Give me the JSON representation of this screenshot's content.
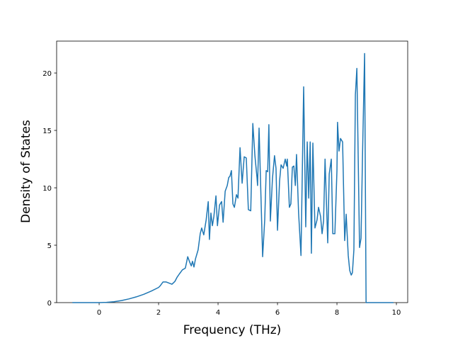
{
  "chart_data": {
    "type": "line",
    "xlabel": "Frequency (THz)",
    "ylabel": "Density of States",
    "x": [
      -0.9,
      -0.5,
      0,
      0.25,
      0.5,
      0.75,
      1.0,
      1.25,
      1.5,
      1.75,
      2.0,
      2.05,
      2.15,
      2.25,
      2.35,
      2.45,
      2.55,
      2.62,
      2.7,
      2.8,
      2.9,
      2.98,
      3.05,
      3.1,
      3.14,
      3.19,
      3.24,
      3.33,
      3.4,
      3.45,
      3.52,
      3.6,
      3.67,
      3.71,
      3.76,
      3.81,
      3.86,
      3.93,
      3.98,
      4.05,
      4.12,
      4.17,
      4.24,
      4.31,
      4.36,
      4.4,
      4.45,
      4.5,
      4.55,
      4.62,
      4.67,
      4.74,
      4.81,
      4.88,
      4.95,
      5.02,
      5.1,
      5.17,
      5.24,
      5.31,
      5.33,
      5.38,
      5.5,
      5.57,
      5.62,
      5.67,
      5.71,
      5.76,
      5.83,
      5.9,
      5.95,
      6.0,
      6.07,
      6.12,
      6.19,
      6.26,
      6.31,
      6.33,
      6.4,
      6.45,
      6.5,
      6.55,
      6.6,
      6.64,
      6.71,
      6.79,
      6.88,
      6.95,
      7.0,
      7.05,
      7.1,
      7.14,
      7.19,
      7.26,
      7.33,
      7.38,
      7.45,
      7.5,
      7.55,
      7.6,
      7.69,
      7.74,
      7.81,
      7.86,
      7.93,
      8.0,
      8.02,
      8.07,
      8.12,
      8.19,
      8.26,
      8.31,
      8.38,
      8.43,
      8.48,
      8.52,
      8.57,
      8.62,
      8.67,
      8.76,
      8.81,
      8.86,
      8.93,
      8.98,
      9.9
    ],
    "series": [
      {
        "color": "#1f77b4",
        "values": [
          0,
          0,
          0,
          0.02,
          0.08,
          0.18,
          0.32,
          0.5,
          0.72,
          1.0,
          1.32,
          1.45,
          1.8,
          1.8,
          1.7,
          1.6,
          1.85,
          2.2,
          2.5,
          2.85,
          3.0,
          4.0,
          3.5,
          3.2,
          3.6,
          3.1,
          3.8,
          4.6,
          6.0,
          6.5,
          5.9,
          7.2,
          8.8,
          5.5,
          7.8,
          6.7,
          7.5,
          9.3,
          6.7,
          8.5,
          8.8,
          7.0,
          9.7,
          10.2,
          10.9,
          11.0,
          11.5,
          8.6,
          8.3,
          9.4,
          9.1,
          13.5,
          10.4,
          12.7,
          12.6,
          8.1,
          8.0,
          15.6,
          12.8,
          10.9,
          10.2,
          15.2,
          4.0,
          7.2,
          11.5,
          11.4,
          15.5,
          7.1,
          10.8,
          12.8,
          11.7,
          6.3,
          10.6,
          12.0,
          11.7,
          12.5,
          11.9,
          12.5,
          8.3,
          8.6,
          11.8,
          11.9,
          10.2,
          12.9,
          7.8,
          4.1,
          18.8,
          6.6,
          14.0,
          9.1,
          14.0,
          4.3,
          13.9,
          6.5,
          7.2,
          8.3,
          7.5,
          6.0,
          7.1,
          12.5,
          5.2,
          11.2,
          12.5,
          6.0,
          6.0,
          11.5,
          15.7,
          13.2,
          14.3,
          14.0,
          5.4,
          7.7,
          4.1,
          2.8,
          2.4,
          2.6,
          4.6,
          18.1,
          20.4,
          4.8,
          5.6,
          12.8,
          21.7,
          0,
          0
        ]
      }
    ],
    "xlim": [
      -1.43,
      10.38
    ],
    "ylim": [
      0,
      22.78
    ],
    "xticks": [
      0,
      2,
      4,
      6,
      8,
      10
    ],
    "yticks": [
      0,
      5,
      10,
      15,
      20
    ]
  }
}
